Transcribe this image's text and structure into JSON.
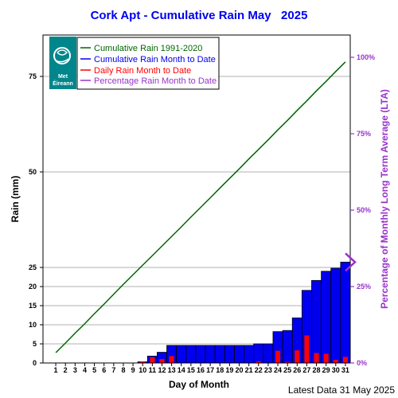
{
  "chart_data": {
    "type": "bar",
    "title": "Cork Apt - Cumulative Rain May   2025",
    "xlabel": "Day of Month",
    "ylabel": "Rain (mm)",
    "ylabel_right": "Percentage  of Monthly Long Term Average (LTA)",
    "footer": "Latest Data 31 May 2025",
    "logo_text": [
      "Met",
      "Éireann"
    ],
    "days": [
      1,
      2,
      3,
      4,
      5,
      6,
      7,
      8,
      9,
      10,
      11,
      12,
      13,
      14,
      15,
      16,
      17,
      18,
      19,
      20,
      21,
      22,
      23,
      24,
      25,
      26,
      27,
      28,
      29,
      30,
      31
    ],
    "y_ticks": [
      0,
      5,
      10,
      15,
      20,
      25,
      50,
      75
    ],
    "right_ticks": [
      "0%",
      "25%",
      "50%",
      "75%",
      "100%"
    ],
    "right_tick_values": [
      0,
      25,
      50,
      75,
      100
    ],
    "lta_total_mm": 80.0,
    "grid": true,
    "legend_position": "top-left",
    "colors": {
      "lta": "#006600",
      "cumulative": "#0000ee",
      "daily": "#ff0000",
      "percentage": "#9933cc",
      "title": "#0000ee",
      "logo": "#00868b"
    },
    "series": [
      {
        "name": "Cumulative Rain 1991-2020",
        "type": "line",
        "values": [
          2.7,
          5.2,
          7.8,
          10.3,
          12.9,
          15.4,
          18.0,
          20.6,
          23.1,
          25.6,
          28.1,
          30.6,
          33.1,
          35.6,
          38.2,
          40.7,
          43.2,
          45.8,
          48.3,
          50.8,
          53.4,
          55.9,
          58.4,
          61.0,
          63.5,
          66.1,
          68.6,
          71.2,
          73.7,
          76.3,
          78.8
        ]
      },
      {
        "name": "Cumulative Rain Month to Date",
        "type": "bar",
        "values": [
          0,
          0,
          0,
          0,
          0,
          0,
          0,
          0,
          0,
          0.3,
          1.8,
          2.8,
          4.6,
          4.6,
          4.6,
          4.6,
          4.6,
          4.6,
          4.6,
          4.6,
          4.6,
          5.0,
          5.0,
          8.2,
          8.5,
          11.8,
          19.0,
          21.6,
          24.0,
          24.8,
          26.4
        ]
      },
      {
        "name": "Daily Rain Month to Date",
        "type": "bar",
        "values": [
          0,
          0,
          0,
          0,
          0,
          0,
          0,
          0,
          0,
          0.3,
          1.5,
          1.0,
          1.8,
          0,
          0,
          0,
          0,
          0,
          0,
          0,
          0,
          0.4,
          0,
          3.2,
          0.3,
          3.3,
          7.2,
          2.6,
          2.4,
          0.8,
          1.6
        ]
      },
      {
        "name": "Percentage Rain Month to Date",
        "type": "marker",
        "value_pct": 33
      }
    ]
  }
}
